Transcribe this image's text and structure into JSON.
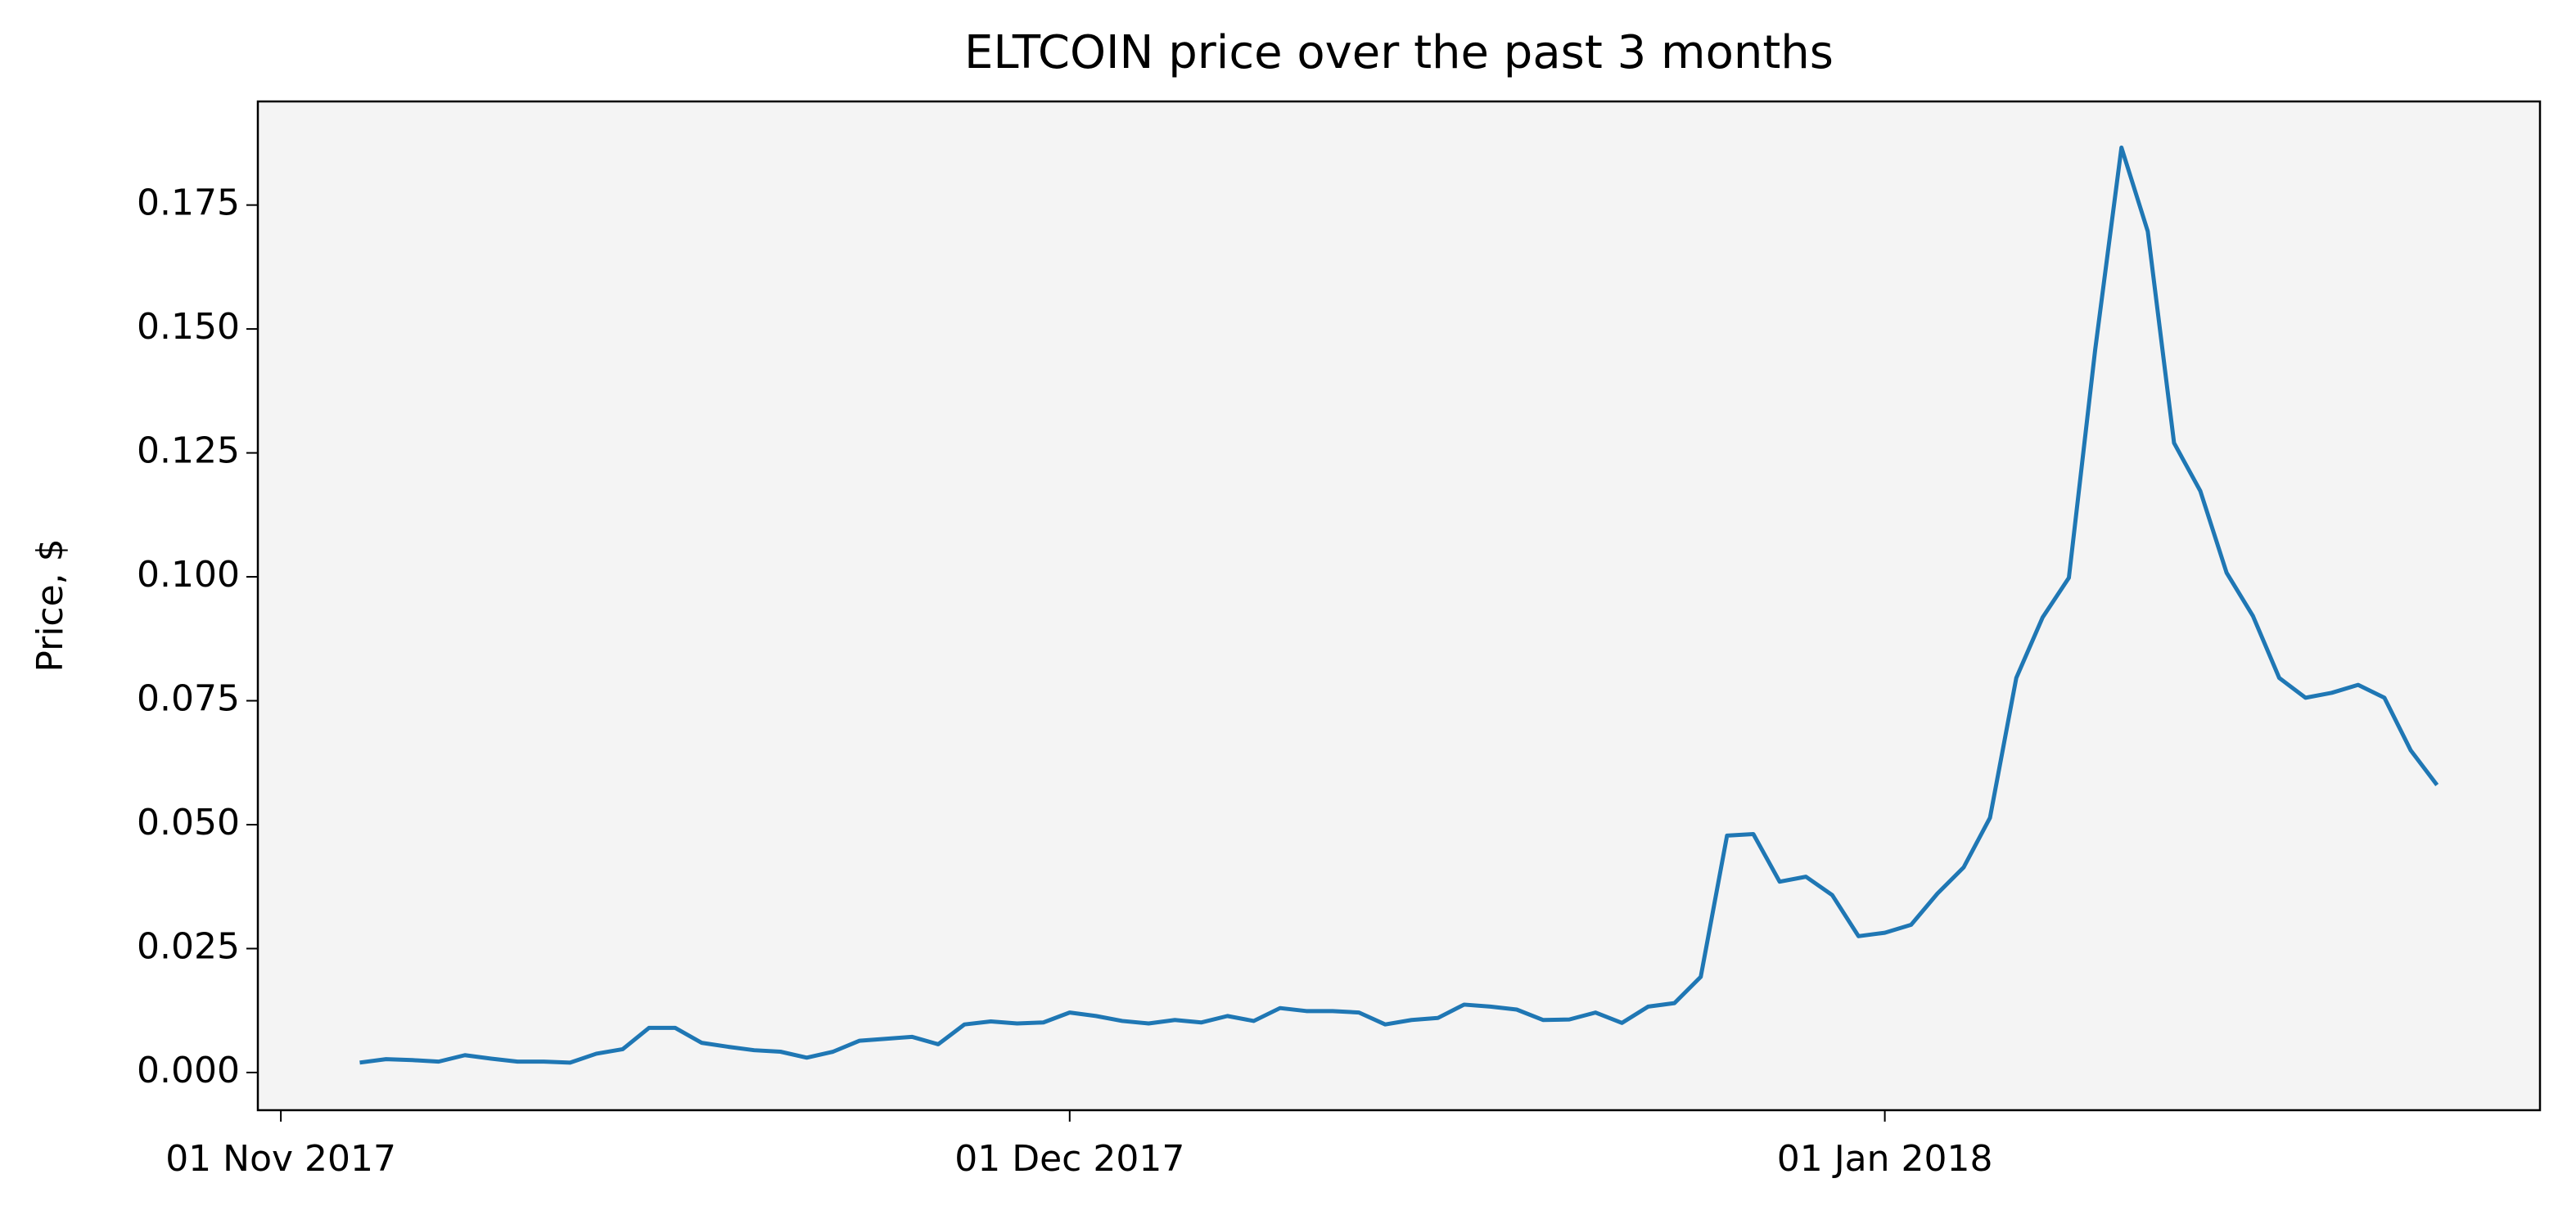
{
  "chart_data": {
    "type": "line",
    "title": "ELTCOIN price over the past 3 months",
    "y_label": "Price, $",
    "x": [
      "2017-11-04",
      "2017-11-05",
      "2017-11-06",
      "2017-11-07",
      "2017-11-08",
      "2017-11-09",
      "2017-11-10",
      "2017-11-11",
      "2017-11-12",
      "2017-11-13",
      "2017-11-14",
      "2017-11-15",
      "2017-11-16",
      "2017-11-17",
      "2017-11-18",
      "2017-11-19",
      "2017-11-20",
      "2017-11-21",
      "2017-11-22",
      "2017-11-23",
      "2017-11-24",
      "2017-11-25",
      "2017-11-26",
      "2017-11-27",
      "2017-11-28",
      "2017-11-29",
      "2017-11-30",
      "2017-12-01",
      "2017-12-02",
      "2017-12-03",
      "2017-12-04",
      "2017-12-05",
      "2017-12-06",
      "2017-12-07",
      "2017-12-08",
      "2017-12-09",
      "2017-12-10",
      "2017-12-11",
      "2017-12-12",
      "2017-12-13",
      "2017-12-14",
      "2017-12-15",
      "2017-12-16",
      "2017-12-17",
      "2017-12-18",
      "2017-12-19",
      "2017-12-20",
      "2017-12-21",
      "2017-12-22",
      "2017-12-23",
      "2017-12-24",
      "2017-12-25",
      "2017-12-26",
      "2017-12-27",
      "2017-12-28",
      "2017-12-29",
      "2017-12-30",
      "2017-12-31",
      "2018-01-01",
      "2018-01-02",
      "2018-01-03",
      "2018-01-04",
      "2018-01-05",
      "2018-01-06",
      "2018-01-07",
      "2018-01-08",
      "2018-01-09",
      "2018-01-10",
      "2018-01-11",
      "2018-01-12",
      "2018-01-13",
      "2018-01-14",
      "2018-01-15",
      "2018-01-16",
      "2018-01-17",
      "2018-01-18",
      "2018-01-19",
      "2018-01-20",
      "2018-01-21",
      "2018-01-22"
    ],
    "series": [
      {
        "name": "ELTCOIN",
        "color": "#1f77b4",
        "values": [
          0.002,
          0.0027,
          0.0025,
          0.0022,
          0.0035,
          0.0028,
          0.0022,
          0.0022,
          0.002,
          0.0038,
          0.0047,
          0.009,
          0.009,
          0.006,
          0.0052,
          0.0045,
          0.0042,
          0.003,
          0.0042,
          0.0064,
          0.0068,
          0.0072,
          0.0057,
          0.0097,
          0.0103,
          0.0099,
          0.0101,
          0.0121,
          0.0114,
          0.0104,
          0.0099,
          0.0106,
          0.0101,
          0.0114,
          0.0104,
          0.013,
          0.0124,
          0.0124,
          0.0121,
          0.0097,
          0.0106,
          0.011,
          0.0137,
          0.0133,
          0.0127,
          0.0106,
          0.0107,
          0.0121,
          0.01,
          0.0133,
          0.014,
          0.0193,
          0.0478,
          0.0481,
          0.0385,
          0.0395,
          0.0358,
          0.0275,
          0.0282,
          0.0298,
          0.0361,
          0.0414,
          0.0514,
          0.0796,
          0.0918,
          0.0998,
          0.1458,
          0.1866,
          0.1697,
          0.127,
          0.1173,
          0.1008,
          0.0921,
          0.0796,
          0.0756,
          0.0766,
          0.0782,
          0.0756,
          0.065,
          0.058
        ]
      }
    ],
    "xlim": [
      "2017-10-31T03:00Z",
      "2018-01-25T22:00Z"
    ],
    "xticks": [
      {
        "value": "2017-11-01",
        "label": "01 Nov 2017"
      },
      {
        "value": "2017-12-01",
        "label": "01 Dec 2017"
      },
      {
        "value": "2018-01-01",
        "label": "01 Jan 2018"
      }
    ],
    "ylim": [
      -0.0076,
      0.1959
    ],
    "yticks": [
      {
        "value": 0,
        "label": "0.000"
      },
      {
        "value": 0.025,
        "label": "0.025"
      },
      {
        "value": 0.05,
        "label": "0.050"
      },
      {
        "value": 0.075,
        "label": "0.075"
      },
      {
        "value": 0.1,
        "label": "0.100"
      },
      {
        "value": 0.125,
        "label": "0.125"
      },
      {
        "value": 0.15,
        "label": "0.150"
      },
      {
        "value": 0.175,
        "label": "0.175"
      }
    ],
    "background": "#f4f4f4",
    "grid": false
  }
}
